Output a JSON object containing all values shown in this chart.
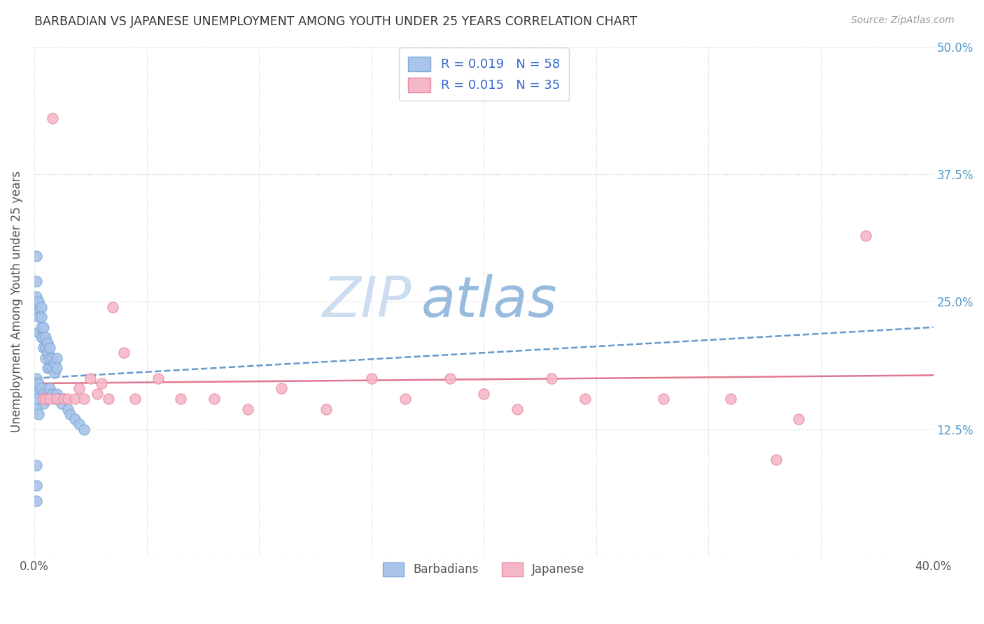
{
  "title": "BARBADIAN VS JAPANESE UNEMPLOYMENT AMONG YOUTH UNDER 25 YEARS CORRELATION CHART",
  "source": "Source: ZipAtlas.com",
  "ylabel": "Unemployment Among Youth under 25 years",
  "xlim": [
    0.0,
    0.4
  ],
  "ylim": [
    0.0,
    0.5
  ],
  "xtick_positions": [
    0.0,
    0.05,
    0.1,
    0.15,
    0.2,
    0.25,
    0.3,
    0.35,
    0.4
  ],
  "xticklabels": [
    "0.0%",
    "",
    "",
    "",
    "",
    "",
    "",
    "",
    "40.0%"
  ],
  "ytick_positions": [
    0.0,
    0.125,
    0.25,
    0.375,
    0.5
  ],
  "ytick_labels_right": [
    "",
    "12.5%",
    "25.0%",
    "37.5%",
    "50.0%"
  ],
  "barbadian_color": "#aac4ea",
  "barbadian_edge": "#7aaad8",
  "japanese_color": "#f5b8c8",
  "japanese_edge": "#e88aa0",
  "trend_barbadian_color": "#6699cc",
  "trend_japanese_color": "#e07890",
  "legend_text_color": "#3366cc",
  "watermark_zip_color": "#ccddf0",
  "watermark_atlas_color": "#99bbdd",
  "background_color": "#ffffff",
  "grid_color": "#cccccc",
  "title_color": "#333333",
  "source_color": "#999999",
  "ylabel_color": "#555555",
  "right_tick_color": "#5599cc",
  "bottom_legend_color": "#555555",
  "barbadian_x": [
    0.001,
    0.001,
    0.001,
    0.001,
    0.002,
    0.002,
    0.002,
    0.002,
    0.003,
    0.003,
    0.003,
    0.003,
    0.004,
    0.004,
    0.004,
    0.005,
    0.005,
    0.005,
    0.006,
    0.006,
    0.006,
    0.007,
    0.007,
    0.007,
    0.008,
    0.008,
    0.009,
    0.009,
    0.01,
    0.01,
    0.001,
    0.001,
    0.002,
    0.002,
    0.003,
    0.003,
    0.004,
    0.004,
    0.005,
    0.006,
    0.007,
    0.008,
    0.009,
    0.01,
    0.011,
    0.012,
    0.013,
    0.015,
    0.016,
    0.018,
    0.02,
    0.022,
    0.001,
    0.001,
    0.002,
    0.001,
    0.001,
    0.001
  ],
  "barbadian_y": [
    0.295,
    0.27,
    0.255,
    0.245,
    0.25,
    0.24,
    0.235,
    0.22,
    0.245,
    0.235,
    0.225,
    0.215,
    0.225,
    0.215,
    0.205,
    0.215,
    0.205,
    0.195,
    0.21,
    0.2,
    0.185,
    0.205,
    0.195,
    0.185,
    0.195,
    0.185,
    0.19,
    0.18,
    0.195,
    0.185,
    0.175,
    0.165,
    0.17,
    0.16,
    0.165,
    0.155,
    0.16,
    0.15,
    0.155,
    0.16,
    0.165,
    0.16,
    0.155,
    0.16,
    0.155,
    0.15,
    0.155,
    0.145,
    0.14,
    0.135,
    0.13,
    0.125,
    0.155,
    0.145,
    0.14,
    0.09,
    0.07,
    0.055
  ],
  "japanese_x": [
    0.004,
    0.005,
    0.007,
    0.008,
    0.01,
    0.013,
    0.015,
    0.018,
    0.02,
    0.022,
    0.025,
    0.028,
    0.03,
    0.033,
    0.035,
    0.04,
    0.045,
    0.055,
    0.065,
    0.08,
    0.095,
    0.11,
    0.13,
    0.15,
    0.165,
    0.185,
    0.2,
    0.215,
    0.23,
    0.245,
    0.28,
    0.31,
    0.34,
    0.37,
    0.33
  ],
  "japanese_y": [
    0.155,
    0.155,
    0.155,
    0.43,
    0.155,
    0.155,
    0.155,
    0.155,
    0.165,
    0.155,
    0.175,
    0.16,
    0.17,
    0.155,
    0.245,
    0.2,
    0.155,
    0.175,
    0.155,
    0.155,
    0.145,
    0.165,
    0.145,
    0.175,
    0.155,
    0.175,
    0.16,
    0.145,
    0.175,
    0.155,
    0.155,
    0.155,
    0.135,
    0.315,
    0.095
  ],
  "trend_barb_x0": 0.0,
  "trend_barb_y0": 0.175,
  "trend_barb_x1": 0.4,
  "trend_barb_y1": 0.225,
  "trend_jap_x0": 0.0,
  "trend_jap_y0": 0.17,
  "trend_jap_x1": 0.4,
  "trend_jap_y1": 0.178
}
